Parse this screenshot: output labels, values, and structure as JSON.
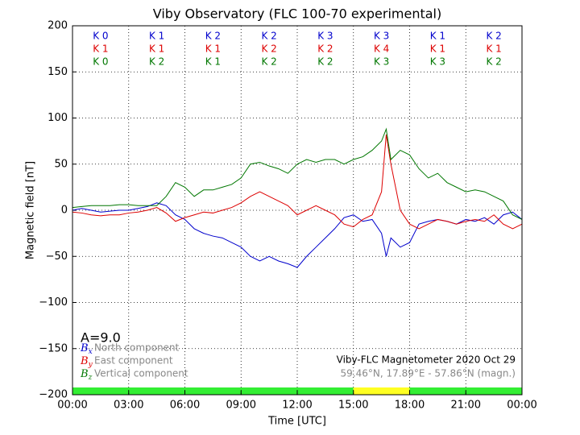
{
  "chart_data": {
    "type": "line",
    "title": "Viby Observatory (FLC 100-70 experimental)",
    "x_label": "Time [UTC]",
    "y_label": "Magnetic field [nT]",
    "xlim": [
      0,
      24
    ],
    "ylim": [
      -200,
      200
    ],
    "xticks": [
      {
        "value": 0,
        "label": "00:00"
      },
      {
        "value": 3,
        "label": "03:00"
      },
      {
        "value": 6,
        "label": "06:00"
      },
      {
        "value": 9,
        "label": "09:00"
      },
      {
        "value": 12,
        "label": "12:00"
      },
      {
        "value": 15,
        "label": "15:00"
      },
      {
        "value": 18,
        "label": "18:00"
      },
      {
        "value": 21,
        "label": "21:00"
      },
      {
        "value": 24,
        "label": "00:00"
      }
    ],
    "yticks": [
      {
        "value": -200,
        "label": "−200"
      },
      {
        "value": -150,
        "label": "−150"
      },
      {
        "value": -100,
        "label": "−100"
      },
      {
        "value": -50,
        "label": "−50"
      },
      0,
      50,
      100,
      150,
      200
    ],
    "grid": true,
    "x": [
      0,
      0.5,
      1,
      1.5,
      2,
      2.5,
      3,
      3.5,
      4,
      4.5,
      5,
      5.5,
      6,
      6.5,
      7,
      7.5,
      8,
      8.5,
      9,
      9.5,
      10,
      10.5,
      11,
      11.5,
      12,
      12.5,
      13,
      13.5,
      14,
      14.5,
      15,
      15.5,
      16,
      16.5,
      16.75,
      17,
      17.5,
      18,
      18.5,
      19,
      19.5,
      20,
      20.5,
      21,
      21.5,
      22,
      22.5,
      23,
      23.5,
      24
    ],
    "series": [
      {
        "name": "North component",
        "symbol": "B",
        "subscript": "x",
        "color": "#0000cc",
        "values": [
          0,
          2,
          0,
          -2,
          -1,
          0,
          0,
          2,
          4,
          8,
          5,
          -5,
          -10,
          -20,
          -25,
          -28,
          -30,
          -35,
          -40,
          -50,
          -55,
          -50,
          -55,
          -58,
          -62,
          -50,
          -40,
          -30,
          -20,
          -8,
          -5,
          -12,
          -10,
          -25,
          -50,
          -30,
          -40,
          -35,
          -15,
          -12,
          -10,
          -12,
          -15,
          -10,
          -12,
          -8,
          -15,
          -5,
          -2,
          -10
        ]
      },
      {
        "name": "East component",
        "symbol": "B",
        "subscript": "y",
        "color": "#dd0000",
        "values": [
          -2,
          -3,
          -5,
          -6,
          -5,
          -5,
          -3,
          -2,
          0,
          3,
          -3,
          -12,
          -8,
          -5,
          -2,
          -3,
          0,
          3,
          8,
          15,
          20,
          15,
          10,
          5,
          -5,
          0,
          5,
          0,
          -5,
          -15,
          -18,
          -10,
          -5,
          20,
          82,
          50,
          0,
          -15,
          -20,
          -15,
          -10,
          -12,
          -15,
          -12,
          -10,
          -12,
          -5,
          -15,
          -20,
          -15
        ]
      },
      {
        "name": "Vertical component",
        "symbol": "B",
        "subscript": "z",
        "color": "#007700",
        "values": [
          3,
          4,
          5,
          5,
          5,
          6,
          6,
          5,
          5,
          5,
          15,
          30,
          25,
          15,
          22,
          22,
          25,
          28,
          35,
          50,
          52,
          48,
          45,
          40,
          50,
          55,
          52,
          55,
          55,
          50,
          55,
          58,
          65,
          75,
          88,
          55,
          65,
          60,
          45,
          35,
          40,
          30,
          25,
          20,
          22,
          20,
          15,
          10,
          -5,
          -10
        ]
      }
    ],
    "k_indices": [
      {
        "color": "#0000cc",
        "labels": [
          "K 0",
          "K 1",
          "K 2",
          "K 2",
          "K 3",
          "K 3",
          "K 1",
          "K 2"
        ]
      },
      {
        "color": "#dd0000",
        "labels": [
          "K 1",
          "K 1",
          "K 1",
          "K 2",
          "K 2",
          "K 4",
          "K 1",
          "K 1"
        ]
      },
      {
        "color": "#007700",
        "labels": [
          "K 0",
          "K 2",
          "K 1",
          "K 2",
          "K 2",
          "K 3",
          "K 3",
          "K 2"
        ]
      }
    ],
    "annotation": "A=9.0",
    "instrument": "Viby-FLC Magnetometer 2020 Oct 29",
    "location": "59.46°N, 17.89°E - 57.86°N (magn.)",
    "status_bar": [
      {
        "start": 0,
        "end": 15,
        "color": "#33ee33"
      },
      {
        "start": 15,
        "end": 18,
        "color": "#ffff22"
      },
      {
        "start": 18,
        "end": 24,
        "color": "#33ee33"
      }
    ]
  }
}
